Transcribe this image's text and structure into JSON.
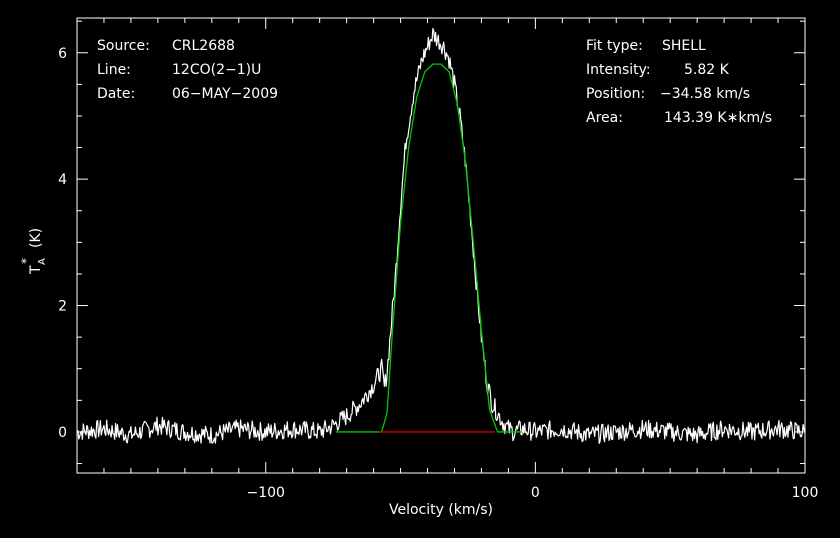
{
  "chart_data": {
    "type": "line",
    "xlabel": "Velocity (km/s)",
    "ylabel_main": "T",
    "ylabel_sub": "A",
    "ylabel_sup": "*",
    "ylabel_unit": "(K)",
    "xlim": [
      -170,
      100
    ],
    "ylim": [
      -0.65,
      6.55
    ],
    "x_ticks": [
      -100,
      0,
      100
    ],
    "x_tick_labels": [
      "−100",
      "0",
      "100"
    ],
    "y_ticks": [
      0,
      2,
      4,
      6
    ],
    "y_tick_labels": [
      "0",
      "2",
      "4",
      "6"
    ],
    "grid": false,
    "info_left": [
      {
        "key": "Source:",
        "value": "CRL2688"
      },
      {
        "key": "Line:",
        "value": "12CO(2−1)U"
      },
      {
        "key": "Date:",
        "value": "06−MAY−2009"
      }
    ],
    "info_right": [
      {
        "key": "Fit type:",
        "value": "SHELL"
      },
      {
        "key": "Intensity:",
        "value": "5.82 K"
      },
      {
        "key": "Position:",
        "value": "−34.58 km/s"
      },
      {
        "key": "Area:",
        "value": "143.39 K∗km/s"
      }
    ],
    "colors": {
      "spectrum": "#ffffff",
      "fit": "#00c800",
      "baseline": "#d00000",
      "frame": "#ffffff"
    },
    "series": [
      {
        "role": "spectrum",
        "color": "#ffffff",
        "x": [
          -170,
          -160,
          -150,
          -140,
          -130,
          -120,
          -110,
          -100,
          -90,
          -80,
          -75,
          -70,
          -65,
          -60,
          -57,
          -56,
          -55,
          -52,
          -50,
          -48,
          -45,
          -42,
          -40,
          -38,
          -36,
          -34,
          -32,
          -30,
          -28,
          -26,
          -24,
          -22,
          -20,
          -18,
          -16,
          -14,
          -12,
          -10,
          -8,
          -5,
          0,
          10,
          20,
          30,
          40,
          50,
          60,
          70,
          80,
          90,
          100
        ],
        "y": [
          0.0,
          0.05,
          -0.05,
          0.1,
          0.0,
          -0.05,
          0.05,
          0.0,
          0.05,
          0.0,
          0.1,
          0.25,
          0.45,
          0.75,
          1.0,
          0.7,
          0.95,
          2.4,
          3.6,
          4.6,
          5.4,
          5.9,
          6.1,
          6.3,
          6.2,
          6.1,
          5.9,
          5.5,
          5.0,
          4.3,
          3.4,
          2.4,
          1.5,
          0.8,
          0.45,
          0.3,
          0.15,
          0.05,
          0.0,
          0.05,
          0.0,
          0.05,
          -0.05,
          0.0,
          0.05,
          0.0,
          -0.05,
          0.05,
          0.0,
          0.05,
          0.0
        ]
      },
      {
        "role": "fit",
        "color": "#00c800",
        "x": [
          -74,
          -72,
          -70,
          -65,
          -60,
          -57,
          -55,
          -53,
          -50,
          -47,
          -44,
          -41,
          -38,
          -35,
          -32,
          -29,
          -26,
          -23,
          -20,
          -17,
          -14,
          -10,
          -5
        ],
        "y": [
          0,
          0,
          0,
          0,
          0,
          0,
          0.3,
          1.6,
          3.3,
          4.5,
          5.3,
          5.7,
          5.82,
          5.82,
          5.7,
          5.2,
          4.3,
          3.0,
          1.6,
          0.35,
          0,
          0,
          0
        ]
      },
      {
        "role": "baseline",
        "color": "#d00000",
        "x": [
          -58,
          -15
        ],
        "y": [
          0,
          0
        ]
      }
    ]
  }
}
